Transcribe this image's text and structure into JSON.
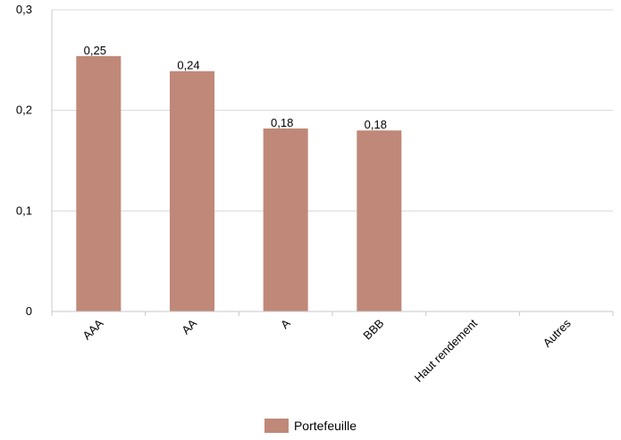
{
  "chart_data": {
    "type": "bar",
    "categories": [
      "AAA",
      "AA",
      "A",
      "BBB",
      "Haut rendement",
      "Autres"
    ],
    "series": [
      {
        "name": "Portefeuille",
        "values": [
          0.254,
          0.239,
          0.182,
          0.18,
          0,
          0
        ],
        "labels": [
          "0,25",
          "0,24",
          "0,18",
          "0,18",
          "",
          ""
        ]
      }
    ],
    "ylim": [
      0,
      0.3
    ],
    "yticks": [
      0,
      0.1,
      0.2,
      0.3
    ],
    "ytick_labels": [
      "0",
      "0,1",
      "0,2",
      "0,3"
    ],
    "grid": true,
    "legend": "bottom-center",
    "colors": {
      "bar": "#c08878",
      "grid": "#d9d9d9",
      "axis": "#c8c8c8"
    }
  }
}
